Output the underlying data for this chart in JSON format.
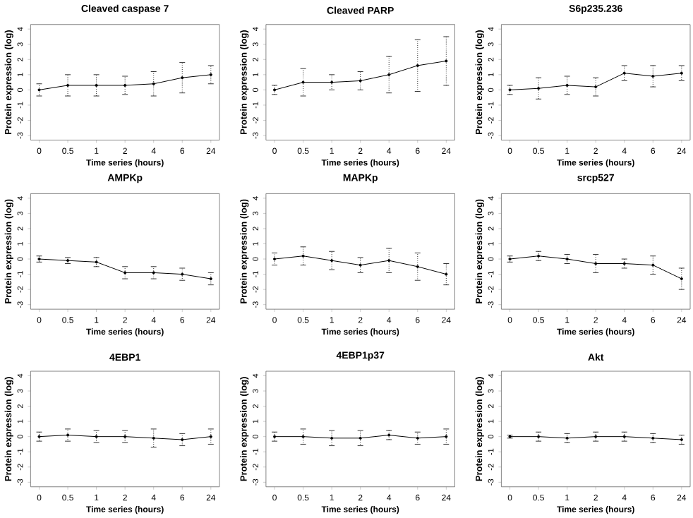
{
  "chart_data": [
    {
      "type": "line",
      "title": "Cleaved caspase 7",
      "xlabel": "Time series (hours)",
      "ylabel": "Protein expression (log)",
      "categories": [
        "0",
        "0.5",
        "1",
        "2",
        "4",
        "6",
        "24"
      ],
      "values": [
        0.0,
        0.3,
        0.3,
        0.3,
        0.4,
        0.8,
        1.0
      ],
      "errors": [
        0.4,
        0.7,
        0.7,
        0.6,
        0.8,
        1.0,
        0.6
      ],
      "color": "#000000",
      "marker": "circle",
      "ylim": [
        -3.3,
        4.3
      ],
      "yticks": [
        -3,
        -2,
        -1,
        0,
        1,
        2,
        3,
        4
      ]
    },
    {
      "type": "line",
      "title": "Cleaved PARP",
      "xlabel": "Time series (hours)",
      "ylabel": "Protein expression (log)",
      "categories": [
        "0",
        "0.5",
        "1",
        "2",
        "4",
        "6",
        "24"
      ],
      "values": [
        0.0,
        0.5,
        0.5,
        0.6,
        1.0,
        1.6,
        1.9
      ],
      "errors": [
        0.3,
        0.9,
        0.5,
        0.6,
        1.2,
        1.7,
        1.6
      ],
      "color": "#000000",
      "marker": "circle",
      "ylim": [
        -3.3,
        4.3
      ],
      "yticks": [
        -3,
        -2,
        -1,
        0,
        1,
        2,
        3,
        4
      ]
    },
    {
      "type": "line",
      "title": "S6p235.236",
      "xlabel": "Time series (hours)",
      "ylabel": "Protein expression (log)",
      "categories": [
        "0",
        "0.5",
        "1",
        "2",
        "4",
        "6",
        "24"
      ],
      "values": [
        0.0,
        0.1,
        0.3,
        0.2,
        1.1,
        0.9,
        1.1
      ],
      "errors": [
        0.3,
        0.7,
        0.6,
        0.6,
        0.5,
        0.7,
        0.5
      ],
      "color": "#000000",
      "marker": "circle",
      "ylim": [
        -3.3,
        4.3
      ],
      "yticks": [
        -3,
        -2,
        -1,
        0,
        1,
        2,
        3,
        4
      ]
    },
    {
      "type": "line",
      "title": "AMPKp",
      "xlabel": "Time series (hours)",
      "ylabel": "Protein expression (log)",
      "categories": [
        "0",
        "0.5",
        "1",
        "2",
        "4",
        "6",
        "24"
      ],
      "values": [
        0.0,
        -0.1,
        -0.2,
        -0.9,
        -0.9,
        -1.0,
        -1.3
      ],
      "errors": [
        0.2,
        0.2,
        0.3,
        0.4,
        0.4,
        0.4,
        0.4
      ],
      "color": "#000000",
      "marker": "circle",
      "ylim": [
        -3.3,
        4.3
      ],
      "yticks": [
        -3,
        -2,
        -1,
        0,
        1,
        2,
        3,
        4
      ]
    },
    {
      "type": "line",
      "title": "MAPKp",
      "xlabel": "Time series (hours)",
      "ylabel": "Protein expression (log)",
      "categories": [
        "0",
        "0.5",
        "1",
        "2",
        "4",
        "6",
        "24"
      ],
      "values": [
        0.0,
        0.2,
        -0.1,
        -0.4,
        -0.1,
        -0.5,
        -1.0
      ],
      "errors": [
        0.4,
        0.6,
        0.6,
        0.5,
        0.8,
        0.9,
        0.7
      ],
      "color": "#000000",
      "marker": "circle",
      "ylim": [
        -3.3,
        4.3
      ],
      "yticks": [
        -3,
        -2,
        -1,
        0,
        1,
        2,
        3,
        4
      ]
    },
    {
      "type": "line",
      "title": "srcp527",
      "xlabel": "Time series (hours)",
      "ylabel": "Protein expression (log)",
      "categories": [
        "0",
        "0.5",
        "1",
        "2",
        "4",
        "6",
        "24"
      ],
      "values": [
        0.0,
        0.2,
        0.0,
        -0.3,
        -0.3,
        -0.4,
        -1.3
      ],
      "errors": [
        0.2,
        0.3,
        0.3,
        0.6,
        0.3,
        0.6,
        0.7
      ],
      "color": "#000000",
      "marker": "circle",
      "ylim": [
        -3.3,
        4.3
      ],
      "yticks": [
        -3,
        -2,
        -1,
        0,
        1,
        2,
        3,
        4
      ]
    },
    {
      "type": "line",
      "title": "4EBP1",
      "xlabel": "Time series (hours)",
      "ylabel": "Protein expression (log)",
      "categories": [
        "0",
        "0.5",
        "1",
        "2",
        "4",
        "6",
        "24"
      ],
      "values": [
        0.0,
        0.1,
        0.0,
        0.0,
        -0.1,
        -0.2,
        0.0
      ],
      "errors": [
        0.3,
        0.4,
        0.4,
        0.4,
        0.6,
        0.4,
        0.5
      ],
      "color": "#000000",
      "marker": "circle",
      "ylim": [
        -3.3,
        4.3
      ],
      "yticks": [
        -3,
        -2,
        -1,
        0,
        1,
        2,
        3,
        4
      ]
    },
    {
      "type": "line",
      "title": "4EBP1p37",
      "xlabel": "Time series (hours)",
      "ylabel": "Protein expression (log)",
      "categories": [
        "0",
        "0.5",
        "1",
        "2",
        "4",
        "6",
        "24"
      ],
      "values": [
        0.0,
        0.0,
        -0.1,
        -0.1,
        0.1,
        -0.1,
        0.0
      ],
      "errors": [
        0.3,
        0.5,
        0.5,
        0.5,
        0.3,
        0.4,
        0.5
      ],
      "color": "#000000",
      "marker": "circle",
      "ylim": [
        -3.3,
        4.3
      ],
      "yticks": [
        -3,
        -2,
        -1,
        0,
        1,
        2,
        3,
        4
      ]
    },
    {
      "type": "line",
      "title": "Akt",
      "xlabel": "Time series (hours)",
      "ylabel": "Protein expression (log)",
      "categories": [
        "0",
        "0.5",
        "1",
        "2",
        "4",
        "6",
        "24"
      ],
      "values": [
        0.0,
        0.0,
        -0.1,
        0.0,
        0.0,
        -0.1,
        -0.2
      ],
      "errors": [
        0.1,
        0.3,
        0.3,
        0.3,
        0.3,
        0.3,
        0.3
      ],
      "color": "#000000",
      "marker": "circle",
      "ylim": [
        -3.3,
        4.3
      ],
      "yticks": [
        -3,
        -2,
        -1,
        0,
        1,
        2,
        3,
        4
      ]
    }
  ]
}
